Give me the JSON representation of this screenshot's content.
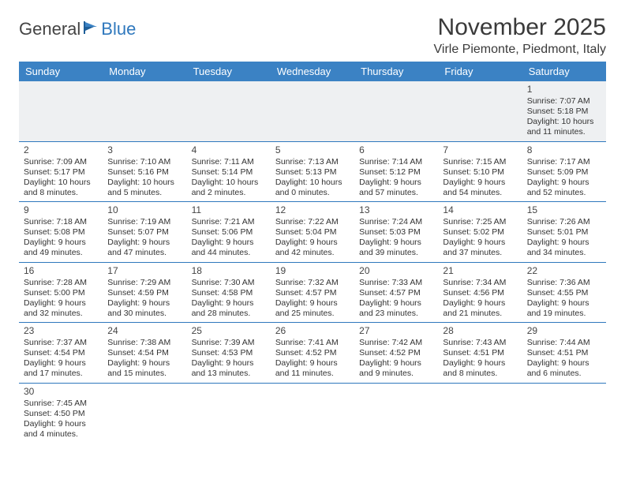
{
  "logo": {
    "part1": "General",
    "part2": "Blue"
  },
  "title": "November 2025",
  "location": "Virle Piemonte, Piedmont, Italy",
  "colors": {
    "header_bg": "#3b82c4",
    "header_text": "#ffffff",
    "rule": "#2f78bd",
    "row_alt": "#eef0f2",
    "logo_blue": "#2f78bd",
    "text": "#333333"
  },
  "day_names": [
    "Sunday",
    "Monday",
    "Tuesday",
    "Wednesday",
    "Thursday",
    "Friday",
    "Saturday"
  ],
  "weeks": [
    [
      null,
      null,
      null,
      null,
      null,
      null,
      {
        "n": "1",
        "sr": "Sunrise: 7:07 AM",
        "ss": "Sunset: 5:18 PM",
        "dl1": "Daylight: 10 hours",
        "dl2": "and 11 minutes."
      }
    ],
    [
      {
        "n": "2",
        "sr": "Sunrise: 7:09 AM",
        "ss": "Sunset: 5:17 PM",
        "dl1": "Daylight: 10 hours",
        "dl2": "and 8 minutes."
      },
      {
        "n": "3",
        "sr": "Sunrise: 7:10 AM",
        "ss": "Sunset: 5:16 PM",
        "dl1": "Daylight: 10 hours",
        "dl2": "and 5 minutes."
      },
      {
        "n": "4",
        "sr": "Sunrise: 7:11 AM",
        "ss": "Sunset: 5:14 PM",
        "dl1": "Daylight: 10 hours",
        "dl2": "and 2 minutes."
      },
      {
        "n": "5",
        "sr": "Sunrise: 7:13 AM",
        "ss": "Sunset: 5:13 PM",
        "dl1": "Daylight: 10 hours",
        "dl2": "and 0 minutes."
      },
      {
        "n": "6",
        "sr": "Sunrise: 7:14 AM",
        "ss": "Sunset: 5:12 PM",
        "dl1": "Daylight: 9 hours",
        "dl2": "and 57 minutes."
      },
      {
        "n": "7",
        "sr": "Sunrise: 7:15 AM",
        "ss": "Sunset: 5:10 PM",
        "dl1": "Daylight: 9 hours",
        "dl2": "and 54 minutes."
      },
      {
        "n": "8",
        "sr": "Sunrise: 7:17 AM",
        "ss": "Sunset: 5:09 PM",
        "dl1": "Daylight: 9 hours",
        "dl2": "and 52 minutes."
      }
    ],
    [
      {
        "n": "9",
        "sr": "Sunrise: 7:18 AM",
        "ss": "Sunset: 5:08 PM",
        "dl1": "Daylight: 9 hours",
        "dl2": "and 49 minutes."
      },
      {
        "n": "10",
        "sr": "Sunrise: 7:19 AM",
        "ss": "Sunset: 5:07 PM",
        "dl1": "Daylight: 9 hours",
        "dl2": "and 47 minutes."
      },
      {
        "n": "11",
        "sr": "Sunrise: 7:21 AM",
        "ss": "Sunset: 5:06 PM",
        "dl1": "Daylight: 9 hours",
        "dl2": "and 44 minutes."
      },
      {
        "n": "12",
        "sr": "Sunrise: 7:22 AM",
        "ss": "Sunset: 5:04 PM",
        "dl1": "Daylight: 9 hours",
        "dl2": "and 42 minutes."
      },
      {
        "n": "13",
        "sr": "Sunrise: 7:24 AM",
        "ss": "Sunset: 5:03 PM",
        "dl1": "Daylight: 9 hours",
        "dl2": "and 39 minutes."
      },
      {
        "n": "14",
        "sr": "Sunrise: 7:25 AM",
        "ss": "Sunset: 5:02 PM",
        "dl1": "Daylight: 9 hours",
        "dl2": "and 37 minutes."
      },
      {
        "n": "15",
        "sr": "Sunrise: 7:26 AM",
        "ss": "Sunset: 5:01 PM",
        "dl1": "Daylight: 9 hours",
        "dl2": "and 34 minutes."
      }
    ],
    [
      {
        "n": "16",
        "sr": "Sunrise: 7:28 AM",
        "ss": "Sunset: 5:00 PM",
        "dl1": "Daylight: 9 hours",
        "dl2": "and 32 minutes."
      },
      {
        "n": "17",
        "sr": "Sunrise: 7:29 AM",
        "ss": "Sunset: 4:59 PM",
        "dl1": "Daylight: 9 hours",
        "dl2": "and 30 minutes."
      },
      {
        "n": "18",
        "sr": "Sunrise: 7:30 AM",
        "ss": "Sunset: 4:58 PM",
        "dl1": "Daylight: 9 hours",
        "dl2": "and 28 minutes."
      },
      {
        "n": "19",
        "sr": "Sunrise: 7:32 AM",
        "ss": "Sunset: 4:57 PM",
        "dl1": "Daylight: 9 hours",
        "dl2": "and 25 minutes."
      },
      {
        "n": "20",
        "sr": "Sunrise: 7:33 AM",
        "ss": "Sunset: 4:57 PM",
        "dl1": "Daylight: 9 hours",
        "dl2": "and 23 minutes."
      },
      {
        "n": "21",
        "sr": "Sunrise: 7:34 AM",
        "ss": "Sunset: 4:56 PM",
        "dl1": "Daylight: 9 hours",
        "dl2": "and 21 minutes."
      },
      {
        "n": "22",
        "sr": "Sunrise: 7:36 AM",
        "ss": "Sunset: 4:55 PM",
        "dl1": "Daylight: 9 hours",
        "dl2": "and 19 minutes."
      }
    ],
    [
      {
        "n": "23",
        "sr": "Sunrise: 7:37 AM",
        "ss": "Sunset: 4:54 PM",
        "dl1": "Daylight: 9 hours",
        "dl2": "and 17 minutes."
      },
      {
        "n": "24",
        "sr": "Sunrise: 7:38 AM",
        "ss": "Sunset: 4:54 PM",
        "dl1": "Daylight: 9 hours",
        "dl2": "and 15 minutes."
      },
      {
        "n": "25",
        "sr": "Sunrise: 7:39 AM",
        "ss": "Sunset: 4:53 PM",
        "dl1": "Daylight: 9 hours",
        "dl2": "and 13 minutes."
      },
      {
        "n": "26",
        "sr": "Sunrise: 7:41 AM",
        "ss": "Sunset: 4:52 PM",
        "dl1": "Daylight: 9 hours",
        "dl2": "and 11 minutes."
      },
      {
        "n": "27",
        "sr": "Sunrise: 7:42 AM",
        "ss": "Sunset: 4:52 PM",
        "dl1": "Daylight: 9 hours",
        "dl2": "and 9 minutes."
      },
      {
        "n": "28",
        "sr": "Sunrise: 7:43 AM",
        "ss": "Sunset: 4:51 PM",
        "dl1": "Daylight: 9 hours",
        "dl2": "and 8 minutes."
      },
      {
        "n": "29",
        "sr": "Sunrise: 7:44 AM",
        "ss": "Sunset: 4:51 PM",
        "dl1": "Daylight: 9 hours",
        "dl2": "and 6 minutes."
      }
    ],
    [
      {
        "n": "30",
        "sr": "Sunrise: 7:45 AM",
        "ss": "Sunset: 4:50 PM",
        "dl1": "Daylight: 9 hours",
        "dl2": "and 4 minutes."
      },
      null,
      null,
      null,
      null,
      null,
      null
    ]
  ]
}
